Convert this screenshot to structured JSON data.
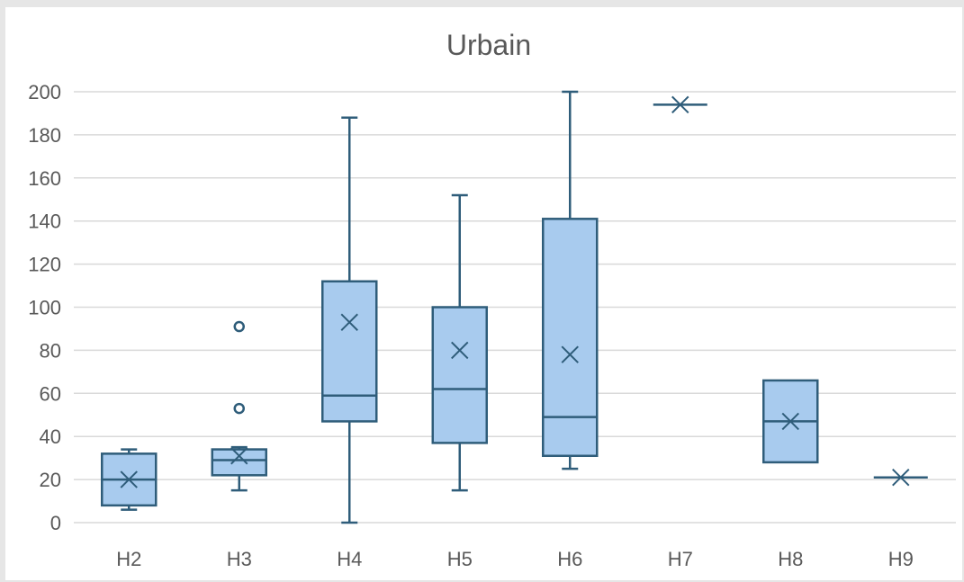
{
  "chart_data": {
    "type": "boxplot",
    "title": "Urbain",
    "xlabel": "",
    "ylabel": "",
    "categories": [
      "H2",
      "H3",
      "H4",
      "H5",
      "H6",
      "H7",
      "H8",
      "H9"
    ],
    "ylim": [
      0,
      200
    ],
    "yticks": [
      0,
      20,
      40,
      60,
      80,
      100,
      120,
      140,
      160,
      180,
      200
    ],
    "ytick_labels": [
      "0",
      "20",
      "40",
      "60",
      "80",
      "100",
      "120",
      "140",
      "160",
      "180",
      "200"
    ],
    "grid": true,
    "boxes": [
      {
        "category": "H2",
        "min": 6,
        "q1": 8,
        "median": 20,
        "q3": 32,
        "max": 34,
        "mean": 20,
        "outliers": []
      },
      {
        "category": "H3",
        "min": 15,
        "q1": 22,
        "median": 29,
        "q3": 34,
        "max": 35,
        "mean": 31,
        "outliers": [
          53,
          91
        ]
      },
      {
        "category": "H4",
        "min": 0,
        "q1": 47,
        "median": 59,
        "q3": 112,
        "max": 188,
        "mean": 93,
        "outliers": []
      },
      {
        "category": "H5",
        "min": 15,
        "q1": 37,
        "median": 62,
        "q3": 100,
        "max": 152,
        "mean": 80,
        "outliers": []
      },
      {
        "category": "H6",
        "min": 25,
        "q1": 31,
        "median": 49,
        "q3": 141,
        "max": 200,
        "mean": 78,
        "outliers": []
      },
      {
        "category": "H7",
        "min": 194,
        "q1": 194,
        "median": 194,
        "q3": 194,
        "max": 194,
        "mean": 194,
        "outliers": []
      },
      {
        "category": "H8",
        "min": 28,
        "q1": 28,
        "median": 47,
        "q3": 66,
        "max": 66,
        "mean": 47,
        "outliers": []
      },
      {
        "category": "H9",
        "min": 21,
        "q1": 21,
        "median": 21,
        "q3": 21,
        "max": 21,
        "mean": 21,
        "outliers": []
      }
    ],
    "colors": {
      "box_fill": "#a8cbee",
      "stroke": "#2f5d7a",
      "grid": "#d9d9d9",
      "text": "#595959"
    }
  }
}
